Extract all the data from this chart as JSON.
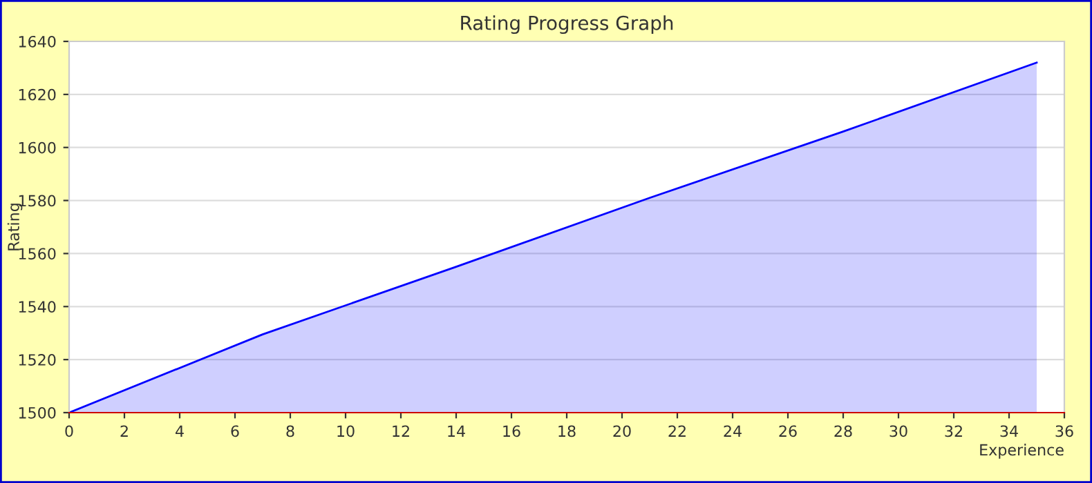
{
  "chart_data": {
    "type": "area",
    "title": "Rating Progress Graph",
    "xlabel": "Experience",
    "ylabel": "Rating",
    "x": [
      0,
      7,
      14,
      21,
      28,
      35
    ],
    "series": [
      {
        "color": "#0000ff",
        "values": [
          1500,
          1529.5,
          1555,
          1581,
          1606,
          1632
        ]
      }
    ],
    "xlim": [
      0,
      36
    ],
    "xticks": [
      0,
      2,
      4,
      6,
      8,
      10,
      12,
      14,
      16,
      18,
      20,
      22,
      24,
      26,
      28,
      30,
      32,
      34,
      36
    ],
    "ylim": [
      1500,
      1640
    ],
    "yticks": [
      1500,
      1520,
      1540,
      1560,
      1580,
      1600,
      1620,
      1640
    ],
    "grid": "y",
    "legend": false
  }
}
